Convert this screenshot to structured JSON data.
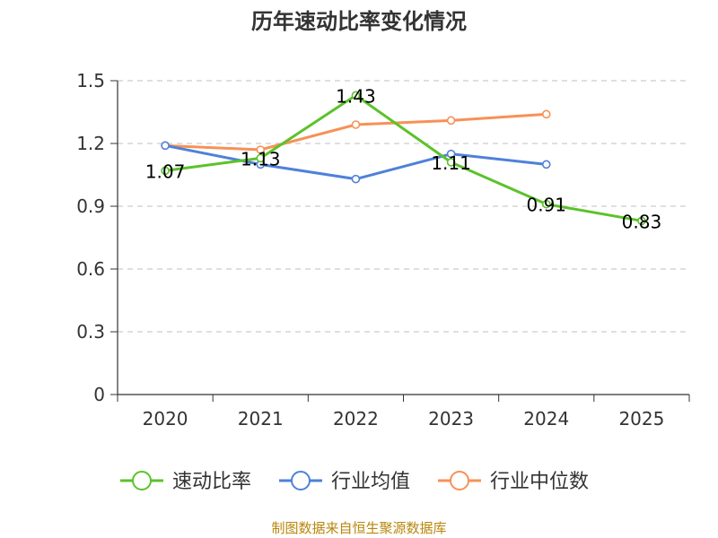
{
  "chart_data": {
    "type": "line",
    "title": "历年速动比率变化情况",
    "categories": [
      "2020",
      "2021",
      "2022",
      "2023",
      "2024",
      "2025"
    ],
    "ylim": [
      0,
      1.5
    ],
    "yticks": [
      "0",
      "0.3",
      "0.6",
      "0.9",
      "1.2",
      "1.5"
    ],
    "ytick_values": [
      0,
      0.3,
      0.6,
      0.9,
      1.2,
      1.5
    ],
    "grid": true,
    "legend_position": "bottom",
    "series": [
      {
        "name": "速动比率",
        "color": "#5cc22a",
        "values": [
          1.07,
          1.13,
          1.43,
          1.11,
          0.91,
          0.83
        ],
        "labels": [
          "1.07",
          "1.13",
          "1.43",
          "1.11",
          "0.91",
          "0.83"
        ]
      },
      {
        "name": "行业均值",
        "color": "#4f81d8",
        "values": [
          1.19,
          1.1,
          1.03,
          1.15,
          1.1,
          null
        ]
      },
      {
        "name": "行业中位数",
        "color": "#f79157",
        "values": [
          1.19,
          1.17,
          1.29,
          1.31,
          1.34,
          null
        ]
      }
    ],
    "source": "制图数据来自恒生聚源数据库"
  }
}
